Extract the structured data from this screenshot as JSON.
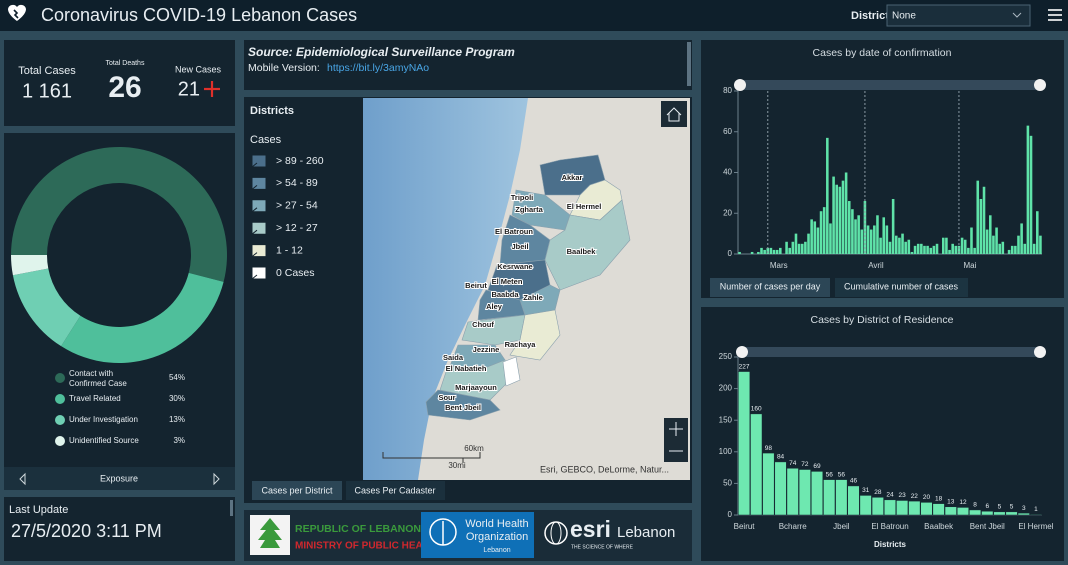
{
  "header": {
    "title": "Coronavirus COVID-19 Lebanon Cases",
    "district_label": "District",
    "district_value": "None"
  },
  "stats": {
    "total_cases": {
      "label": "Total Cases",
      "value": "1 161"
    },
    "total_deaths": {
      "label": "Total Deaths",
      "value": "26"
    },
    "new_cases": {
      "label": "New Cases",
      "value": "21"
    }
  },
  "last_update": {
    "label": "Last Update",
    "value": "27/5/2020 3:11 PM"
  },
  "source": {
    "title": "Source: Epidemiological Surveillance Program",
    "mobile_label": "Mobile Version:",
    "link": "https://bit.ly/3amyNAo"
  },
  "map": {
    "legend": {
      "title": "Districts",
      "subtitle": "Cases",
      "items": [
        "> 89 - 260",
        "> 54 - 89",
        "> 27 - 54",
        "> 12 - 27",
        "1 - 12",
        "0 Cases"
      ],
      "colors": [
        "#4b6f8b",
        "#5e86a0",
        "#7ea9b8",
        "#a8cbc8",
        "#e9ebd4",
        "#ffffff"
      ]
    },
    "labels": [
      "Akkar",
      "Tripoli",
      "El Hermel",
      "Zgharta",
      "El Batroun",
      "Jbeil",
      "Baalbek",
      "Kesrwane",
      "Beirut",
      "El Meten",
      "Baabda",
      "Zahle",
      "Aley",
      "Chouf",
      "Rachaya",
      "Saida",
      "Jezzine",
      "El Nabatieh",
      "Marjaayoun",
      "Sour",
      "Bent Jbeil"
    ],
    "scale_km": "60km",
    "scale_mi": "30mi",
    "attribution": "Esri, GEBCO, DeLorme, Natur...",
    "tabs": [
      "Cases per District",
      "Cases Per Cadaster"
    ]
  },
  "logos": {
    "moph": [
      "REPUBLIC OF LEBANON",
      "MINISTRY OF PUBLIC HEALTH"
    ],
    "who": [
      "World Health",
      "Organization",
      "Lebanon"
    ],
    "esri": [
      "esri",
      "Lebanon",
      "THE SCIENCE OF WHERE"
    ]
  },
  "chart_data": [
    {
      "type": "donut",
      "title": "Exposure",
      "categories": [
        "Contact with Confirmed Case",
        "Travel Related",
        "Under Investigation",
        "Unidentified Source"
      ],
      "values": [
        54,
        30,
        13,
        3
      ],
      "value_labels": [
        "54%",
        "30%",
        "13%",
        "3%"
      ],
      "colors": [
        "#2d6a58",
        "#4fbf9b",
        "#6fcfb3",
        "#e0f4ec"
      ]
    },
    {
      "type": "bar",
      "title": "Cases by  date of confirmation",
      "categories": [
        null,
        null,
        null,
        null,
        null,
        null,
        null,
        null,
        null,
        "Mars",
        null,
        null,
        null,
        null,
        null,
        null,
        null,
        null,
        null,
        null,
        null,
        null,
        null,
        null,
        null,
        null,
        null,
        null,
        null,
        null,
        null,
        null,
        null,
        null,
        null,
        null,
        null,
        null,
        null,
        null,
        "Avril",
        null,
        null,
        null,
        null,
        null,
        null,
        null,
        null,
        null,
        null,
        null,
        null,
        null,
        null,
        null,
        null,
        null,
        null,
        null,
        null,
        null,
        null,
        null,
        null,
        null,
        null,
        null,
        null,
        null,
        "Mai",
        null,
        null,
        null,
        null,
        null,
        null,
        null,
        null,
        null,
        null,
        null,
        null,
        null,
        null,
        null,
        null,
        null,
        null,
        null,
        null,
        null,
        null,
        null,
        null,
        null,
        null
      ],
      "values": [
        1,
        0,
        0,
        0,
        1,
        0,
        1,
        3,
        2,
        3,
        3,
        2,
        2,
        3,
        0,
        6,
        3,
        6,
        10,
        5,
        5,
        6,
        10,
        17,
        16,
        13,
        21,
        23,
        57,
        15,
        38,
        34,
        33,
        36,
        40,
        26,
        22,
        17,
        19,
        12,
        26,
        14,
        12,
        14,
        19,
        8,
        18,
        14,
        6,
        27,
        9,
        8,
        10,
        6,
        7,
        1,
        4,
        5,
        5,
        4,
        4,
        3,
        4,
        5,
        0,
        8,
        8,
        2,
        5,
        4,
        4,
        8,
        7,
        3,
        13,
        3,
        36,
        27,
        33,
        12,
        19,
        9,
        13,
        5,
        6,
        0,
        2,
        4,
        4,
        9,
        15,
        5,
        63,
        58,
        5,
        21,
        9
      ],
      "color": "#5fe3a9",
      "ylim": [
        0,
        80
      ],
      "yticks": [
        0,
        20,
        40,
        60,
        80
      ],
      "tabs": [
        "Number of cases per day",
        "Cumulative number of cases"
      ]
    },
    {
      "type": "bar",
      "title": "Cases by District of Residence",
      "x_label": "Districts",
      "categories": [
        "Beirut",
        null,
        null,
        null,
        "Bcharre",
        null,
        null,
        null,
        "Jbeil",
        null,
        null,
        null,
        "El Batroun",
        null,
        null,
        null,
        "Baalbek",
        null,
        null,
        null,
        "Bent Jbeil",
        null,
        null,
        null,
        "El Hermel"
      ],
      "values": [
        227,
        160,
        98,
        84,
        74,
        72,
        69,
        56,
        56,
        46,
        31,
        28,
        24,
        23,
        22,
        20,
        18,
        13,
        12,
        8,
        6,
        5,
        5,
        3,
        1
      ],
      "color": "#6ee8b0",
      "ylim": [
        0,
        250
      ],
      "yticks": [
        0,
        50,
        100,
        150,
        200,
        250
      ],
      "data_labels": true
    }
  ]
}
